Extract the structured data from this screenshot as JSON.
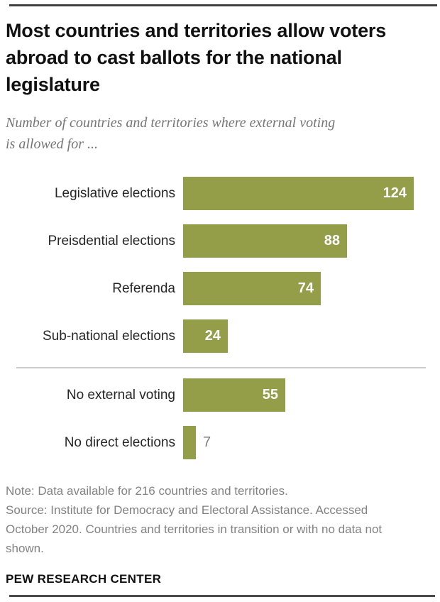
{
  "header": {
    "title": "Most countries and territories allow voters abroad to cast ballots for the national legislature",
    "subtitle": "Number of countries and territories where external voting is allowed for ..."
  },
  "chart_data": {
    "type": "bar",
    "orientation": "horizontal",
    "title": "Most countries and territories allow voters abroad to cast ballots for the national legislature",
    "subtitle": "Number of countries and territories where external voting is allowed for ...",
    "categories": [
      "Legislative elections",
      "Preisdential elections",
      "Referenda",
      "Sub-national elections",
      "No external voting",
      "No direct elections"
    ],
    "values": [
      124,
      88,
      74,
      24,
      55,
      7
    ],
    "value_label_position": [
      "inside",
      "inside",
      "inside",
      "inside",
      "inside",
      "outside"
    ],
    "divider_before_index": 4,
    "xlim": [
      0,
      124
    ],
    "bar_color": "#949d48",
    "value_label_color_inside": "#ffffff",
    "value_label_color_outside": "#7d7d7d",
    "grid": false,
    "legend": false
  },
  "footer": {
    "note": "Note: Data available for 216 countries and territories.",
    "source": "Source: Institute for Democracy and Electoral Assistance. Accessed October 2020. Countries and territories in transition or with no data not shown.",
    "brand": "PEW RESEARCH CENTER"
  }
}
